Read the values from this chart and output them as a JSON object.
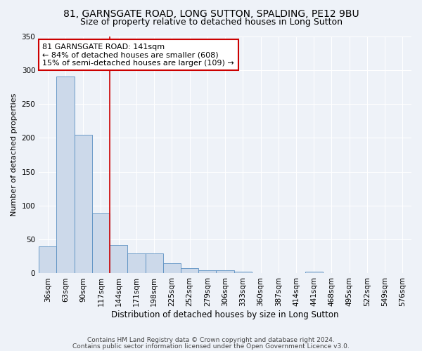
{
  "title": "81, GARNSGATE ROAD, LONG SUTTON, SPALDING, PE12 9BU",
  "subtitle": "Size of property relative to detached houses in Long Sutton",
  "xlabel": "Distribution of detached houses by size in Long Sutton",
  "ylabel": "Number of detached properties",
  "categories": [
    "36sqm",
    "63sqm",
    "90sqm",
    "117sqm",
    "144sqm",
    "171sqm",
    "198sqm",
    "225sqm",
    "252sqm",
    "279sqm",
    "306sqm",
    "333sqm",
    "360sqm",
    "387sqm",
    "414sqm",
    "441sqm",
    "468sqm",
    "495sqm",
    "522sqm",
    "549sqm",
    "576sqm"
  ],
  "values": [
    40,
    290,
    205,
    88,
    42,
    29,
    29,
    15,
    8,
    5,
    5,
    3,
    0,
    0,
    0,
    3,
    0,
    0,
    0,
    0,
    0
  ],
  "bar_color": "#ccd9ea",
  "bar_edge_color": "#5a8fc2",
  "vline_color": "#cc0000",
  "vline_pos": 3.5,
  "ylim": [
    0,
    350
  ],
  "yticks": [
    0,
    50,
    100,
    150,
    200,
    250,
    300,
    350
  ],
  "annotation_line1": "81 GARNSGATE ROAD: 141sqm",
  "annotation_line2": "← 84% of detached houses are smaller (608)",
  "annotation_line3": "15% of semi-detached houses are larger (109) →",
  "annotation_box_color": "#cc0000",
  "footer_line1": "Contains HM Land Registry data © Crown copyright and database right 2024.",
  "footer_line2": "Contains public sector information licensed under the Open Government Licence v3.0.",
  "background_color": "#eef2f8",
  "plot_bg_color": "#eef2f8",
  "title_fontsize": 10,
  "subtitle_fontsize": 9,
  "xlabel_fontsize": 8.5,
  "ylabel_fontsize": 8,
  "tick_fontsize": 7.5,
  "annotation_fontsize": 8,
  "footer_fontsize": 6.5
}
